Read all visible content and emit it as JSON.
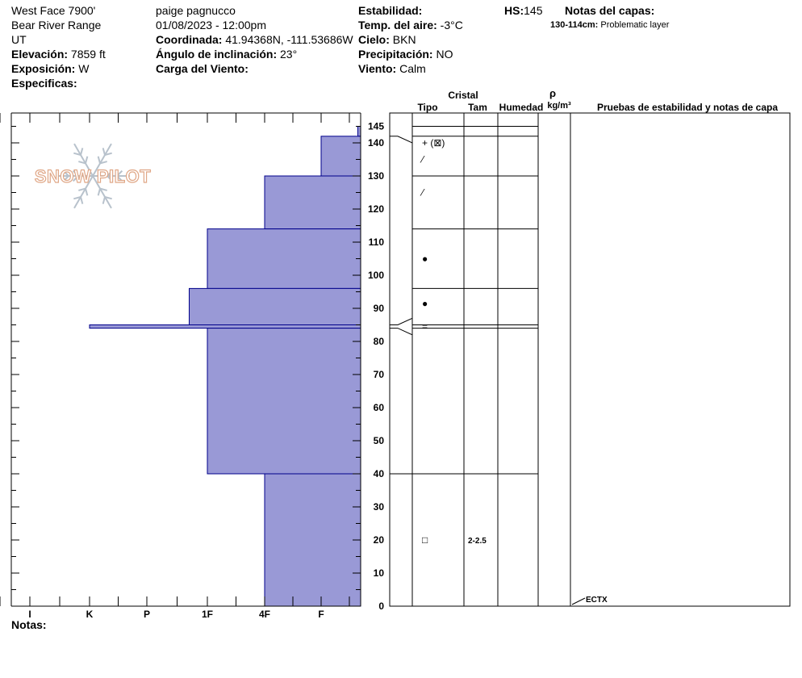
{
  "header": {
    "site_name": "West Face 7900'",
    "range": "Bear River Range",
    "state": "UT",
    "elevation_label": "Elevación:",
    "elevation_value": "7859 ft",
    "aspect_label": "Exposición:",
    "aspect_value": "W",
    "specifics_label": "Especificas:",
    "observer": "paige pagnucco",
    "datetime": "01/08/2023 - 12:00pm",
    "coord_label": "Coordinada:",
    "coord_value": "41.94368N, -111.53686W",
    "slope_label": "Ángulo de inclinación:",
    "slope_value": "23°",
    "wind_load_label": "Carga del Viento:",
    "stability_label": "Estabilidad:",
    "air_temp_label": "Temp. del aire:",
    "air_temp_value": "-3°C",
    "sky_label": "Cielo:",
    "sky_value": "BKN",
    "precip_label": "Precipitación:",
    "precip_value": "NO",
    "wind_label": "Viento:",
    "wind_value": "Calm",
    "hs_label": "HS:",
    "hs_value": "145",
    "layer_notes_title": "Notas del capas:",
    "layer_note_range": "130-114cm:",
    "layer_note_text": "Problematic layer"
  },
  "logo": {
    "text": "SNOW PILOT"
  },
  "columns": {
    "crystal": "Cristal",
    "type": "Tipo",
    "size": "Tam",
    "moisture": "Humedad",
    "rho": "ρ",
    "density_unit": "kg/m³",
    "tests": "Pruebas de estabilidad y notas de capa"
  },
  "notes_label": "Notas:",
  "colors": {
    "hardness_fill": "#9999d6",
    "hardness_stroke": "#00008b"
  },
  "chart_data": {
    "type": "bar",
    "orientation": "horizontal-steps",
    "hardness_categories": [
      "I",
      "K",
      "P",
      "1F",
      "4F",
      "F"
    ],
    "depth_ticks": [
      0,
      10,
      20,
      30,
      40,
      50,
      60,
      70,
      80,
      90,
      100,
      110,
      120,
      130,
      140,
      145
    ],
    "ylim": [
      0,
      145
    ],
    "layers": [
      {
        "top": 145,
        "bottom": 142,
        "hardness": 6.65
      },
      {
        "top": 142,
        "bottom": 130,
        "hardness": 6.0
      },
      {
        "top": 130,
        "bottom": 114,
        "hardness": 5.0
      },
      {
        "top": 114,
        "bottom": 96,
        "hardness": 4.0
      },
      {
        "top": 96,
        "bottom": 85,
        "hardness": 3.7
      },
      {
        "top": 85,
        "bottom": 84,
        "hardness": 2.0
      },
      {
        "top": 84,
        "bottom": 40,
        "hardness": 4.0
      },
      {
        "top": 40,
        "bottom": 0,
        "hardness": 5.0
      }
    ],
    "crystal_rows": [
      {
        "depth": 140,
        "symbol": "+ (⊠)",
        "size": ""
      },
      {
        "depth": 135,
        "symbol": "⁄",
        "size": ""
      },
      {
        "depth": 125,
        "symbol": "⁄",
        "size": ""
      },
      {
        "depth": 105,
        "symbol": "●",
        "size": ""
      },
      {
        "depth": 91.5,
        "symbol": "●",
        "size": ""
      },
      {
        "depth": 84.5,
        "symbol": "=",
        "size": ""
      },
      {
        "depth": 20,
        "symbol": "□",
        "size": "2-2.5"
      }
    ],
    "tests": [
      {
        "depth": 0,
        "label": "ECTX"
      }
    ]
  }
}
